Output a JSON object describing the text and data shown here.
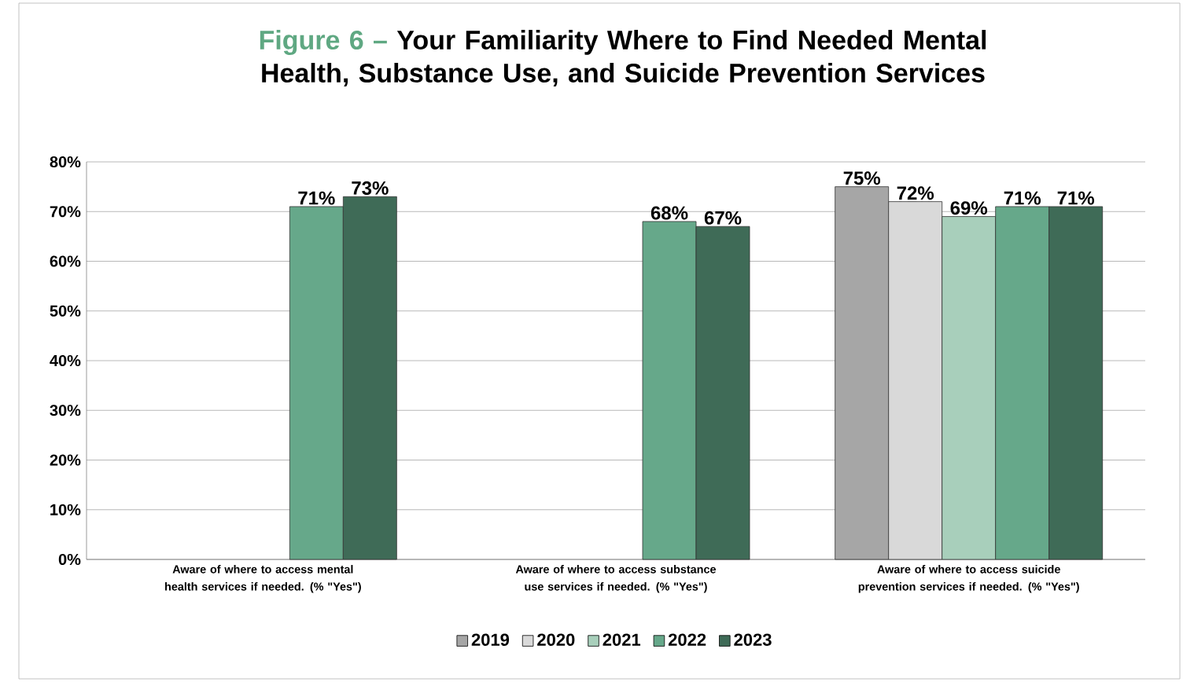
{
  "chart_data": {
    "type": "bar",
    "annotations": [
      "Figure 6 –"
    ],
    "title": "Your Familiarity Where to Find Needed Mental Health, Substance Use, and Suicide Prevention Services",
    "categories": [
      "Aware of where to access mental health services if needed. (% \"Yes\")",
      "Aware of where to access substance use services if needed. (% \"Yes\")",
      "Aware of where to access suicide prevention services if needed. (% \"Yes\")"
    ],
    "series": [
      {
        "name": "2019",
        "color": "#a6a6a6",
        "values": [
          null,
          null,
          75
        ],
        "value_labels": [
          null,
          null,
          "75%"
        ]
      },
      {
        "name": "2020",
        "color": "#d9d9d9",
        "values": [
          null,
          null,
          72
        ],
        "value_labels": [
          null,
          null,
          "72%"
        ]
      },
      {
        "name": "2021",
        "color": "#a8cfbb",
        "values": [
          null,
          null,
          69
        ],
        "value_labels": [
          null,
          null,
          "69%"
        ]
      },
      {
        "name": "2022",
        "color": "#66a88a",
        "values": [
          71,
          68,
          71
        ],
        "value_labels": [
          "71%",
          "68%",
          "71%"
        ]
      },
      {
        "name": "2023",
        "color": "#3f6b57",
        "values": [
          73,
          67,
          71
        ],
        "value_labels": [
          "73%",
          "67%",
          "71%"
        ]
      }
    ],
    "ylim": [
      0,
      80
    ],
    "yticks": [
      {
        "value": 0,
        "label": "0%"
      },
      {
        "value": 10,
        "label": "10%"
      },
      {
        "value": 20,
        "label": "20%"
      },
      {
        "value": 30,
        "label": "30%"
      },
      {
        "value": 40,
        "label": "40%"
      },
      {
        "value": 50,
        "label": "50%"
      },
      {
        "value": 60,
        "label": "60%"
      },
      {
        "value": 70,
        "label": "70%"
      },
      {
        "value": 80,
        "label": "80%"
      }
    ],
    "grid": "y",
    "legend": "bottom"
  }
}
